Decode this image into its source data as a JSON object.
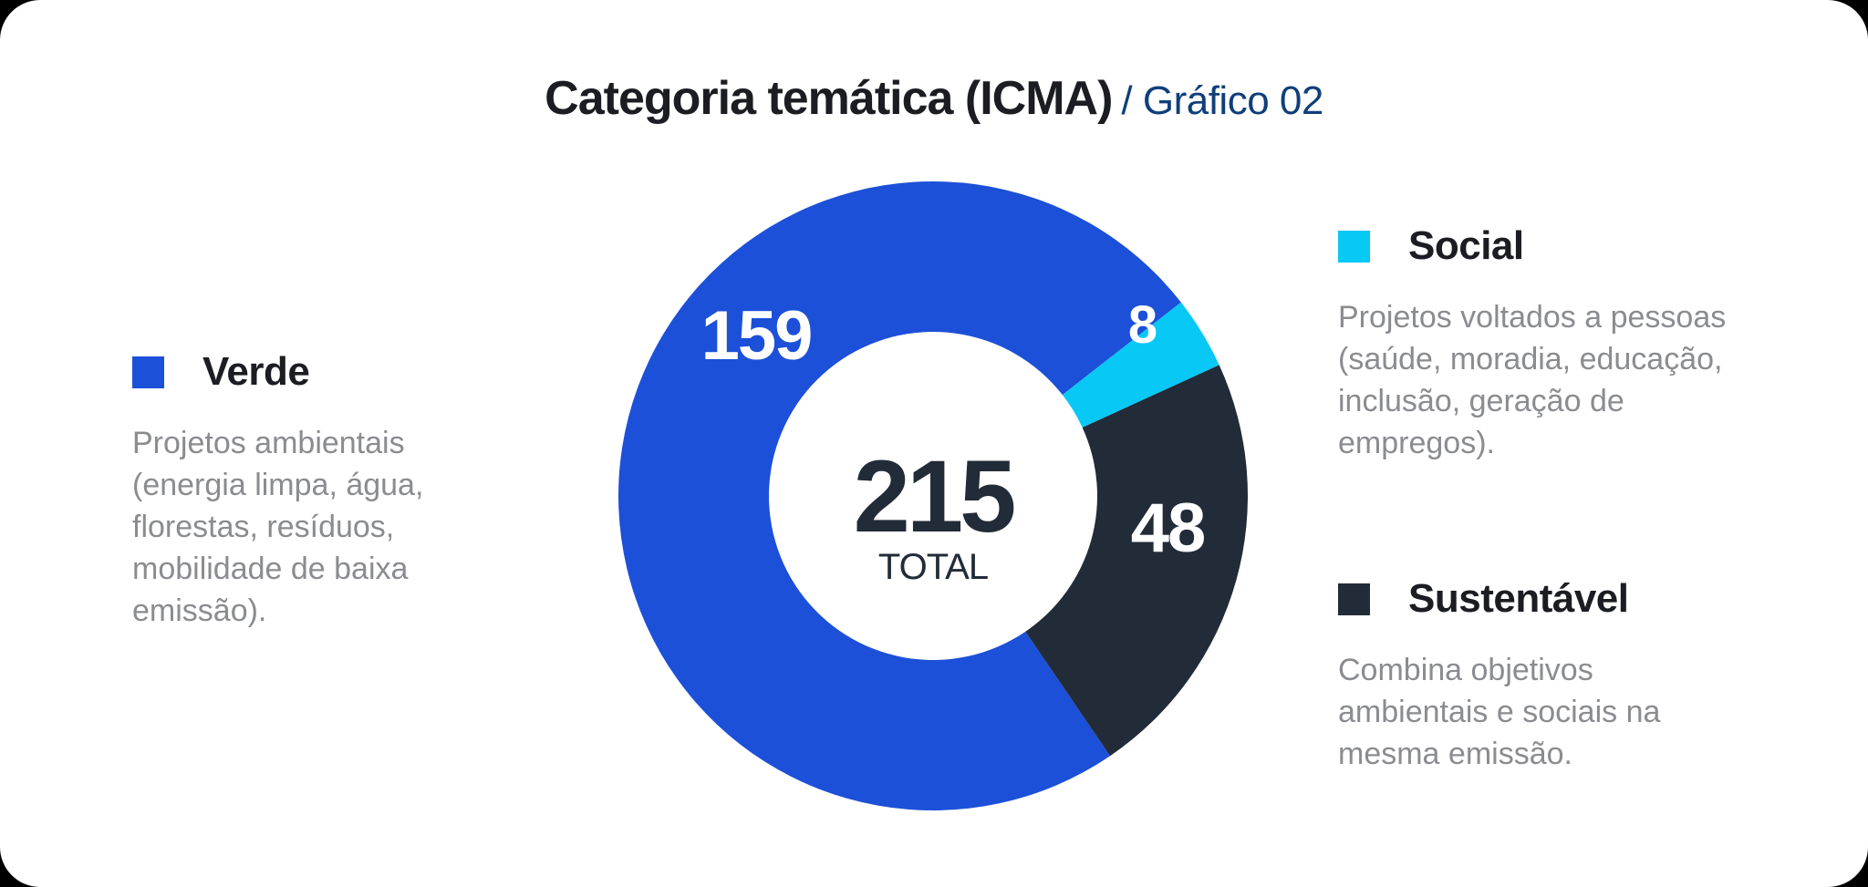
{
  "title": {
    "main": "Categoria temática (ICMA)",
    "sub": "/ Gráfico 02"
  },
  "center": {
    "total": "215",
    "label": "TOTAL"
  },
  "chart_data": {
    "type": "pie",
    "variant": "donut",
    "title": "Categoria temática (ICMA)",
    "categories": [
      "Verde",
      "Social",
      "Sustentável"
    ],
    "values": [
      159,
      8,
      48
    ],
    "total": 215,
    "colors": [
      "#1c50d8",
      "#08c8f6",
      "#222b38"
    ],
    "legend_position": "sides"
  },
  "legend": [
    {
      "name": "Verde",
      "color": "#1c50d8",
      "description": "Projetos ambientais (energia limpa, água, florestas, resíduos, mobilidade de baixa emissão)."
    },
    {
      "name": "Social",
      "color": "#08c8f6",
      "description": "Projetos voltados a pessoas (saúde, moradia, educação, inclusão, geração de empregos)."
    },
    {
      "name": "Sustentável",
      "color": "#222b38",
      "description": "Combina objetivos ambientais e sociais na mesma emissão."
    }
  ]
}
